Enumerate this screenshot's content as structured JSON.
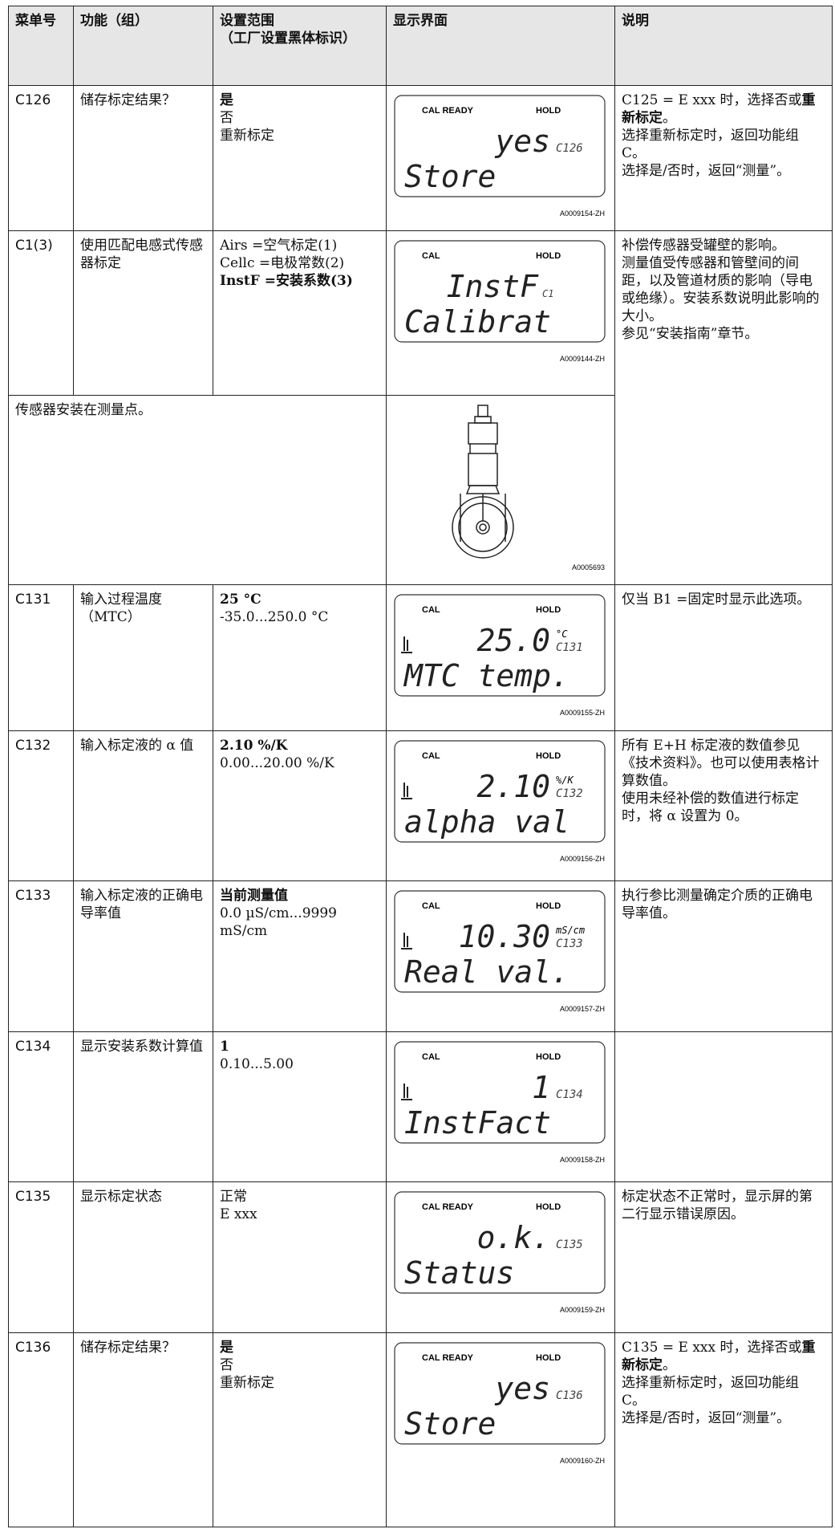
{
  "header": [
    [
      "菜单号"
    ],
    [
      "功能（组）"
    ],
    [
      "设置范围",
      "（工厂设置黑体标识）"
    ],
    [
      "显示界面"
    ],
    [
      "说明"
    ]
  ],
  "rows": [
    {
      "menu": "C126",
      "function": "储存标定结果？",
      "range": [
        {
          "bold": "是"
        },
        "否",
        "重新标定"
      ],
      "display": {
        "status": "CAL READY",
        "hold": "HOLD",
        "value": "yes",
        "code": "C126",
        "label": "Store",
        "figure": "A0009154-ZH"
      },
      "description": [
        [
          "C125 = E xxx 时，选择否或",
          {
            "bold": "重新标定"
          },
          "。"
        ],
        [
          "选择重新标定时，返回功能组 C。"
        ],
        [
          "选择是/否时，返回“测量”。"
        ]
      ]
    },
    {
      "menu": "C1(3)",
      "function": "使用匹配电感式传感器标定",
      "range": [
        "Airs =空气标定(1)",
        "Cellc =电极常数(2)",
        {
          "bold": "InstF =安装系数(3)"
        }
      ],
      "display": {
        "status": "CAL",
        "hold": "HOLD",
        "value": "InstF",
        "code": "C1",
        "label": "Calibrat",
        "figure": "A0009144-ZH"
      },
      "description": [
        [
          "补偿传感器受罐壁的影响。"
        ],
        [
          "测量值受传感器和管壁间的间距，以及管道材质的影响（导电或绝缘）。安装系数说明此影响的大小。"
        ],
        [
          "参见“安装指南”章节。"
        ]
      ]
    },
    {
      "install": "传感器安装在测量点。",
      "figure": "A0005693"
    },
    {
      "menu": "C131",
      "function": "输入过程温度（MTC）",
      "range": [
        {
          "bold": "25 °C"
        },
        "-35.0...250.0 °C"
      ],
      "display": {
        "status": "CAL",
        "hold": "HOLD",
        "value": "25.0",
        "unit": "°C",
        "code": "C131",
        "label": "MTC temp.",
        "figure": "A0009155-ZH"
      },
      "description": [
        [
          "仅当 B1 =固定时显示此选项。"
        ]
      ]
    },
    {
      "menu": "C132",
      "function": "输入标定液的 α 值",
      "range": [
        {
          "bold": "2.10 %/K"
        },
        "0.00...20.00 %/K"
      ],
      "display": {
        "status": "CAL",
        "hold": "HOLD",
        "value": "2.10",
        "unit": "%/K",
        "code": "C132",
        "label": "alpha val",
        "figure": "A0009156-ZH"
      },
      "description": [
        [
          "所有 E+H 标定液的数值参见《技术资料》。也可以使用表格计算数值。"
        ],
        [
          "使用未经补偿的数值进行标定时，将 α 设置为 0。"
        ]
      ]
    },
    {
      "menu": "C133",
      "function": "输入标定液的正确电导率值",
      "range": [
        {
          "bold": "当前测量值"
        },
        "0.0 µS/cm...9999 mS/cm"
      ],
      "display": {
        "status": "CAL",
        "hold": "HOLD",
        "value": "10.30",
        "unit": "mS/cm",
        "code": "C133",
        "label": "Real val.",
        "figure": "A0009157-ZH"
      },
      "description": [
        [
          "执行参比测量确定介质的正确电导率值。"
        ]
      ]
    },
    {
      "menu": "C134",
      "function": "显示安装系数计算值",
      "range": [
        {
          "bold": "1"
        },
        "0.10...5.00"
      ],
      "display": {
        "status": "CAL",
        "hold": "HOLD",
        "value": "1",
        "code": "C134",
        "label": "InstFact",
        "figure": "A0009158-ZH"
      },
      "description": []
    },
    {
      "menu": "C135",
      "function": "显示标定状态",
      "range": [
        "正常",
        "E xxx"
      ],
      "display": {
        "status": "CAL READY",
        "hold": "HOLD",
        "value": "o.k.",
        "code": "C135",
        "label": "Status",
        "figure": "A0009159-ZH"
      },
      "description": [
        [
          "标定状态不正常时，显示屏的第二行显示错误原因。"
        ]
      ]
    },
    {
      "menu": "C136",
      "function": "储存标定结果？",
      "range": [
        {
          "bold": "是"
        },
        "否",
        "重新标定"
      ],
      "display": {
        "status": "CAL READY",
        "hold": "HOLD",
        "value": "yes",
        "code": "C136",
        "label": "Store",
        "figure": "A0009160-ZH"
      },
      "description": [
        [
          "C135 = E xxx 时，选择否或",
          {
            "bold": "重新标定"
          },
          "。"
        ],
        [
          "选择重新标定时，返回功能组 C。"
        ],
        [
          "选择是/否时，返回“测量”。"
        ]
      ]
    }
  ]
}
